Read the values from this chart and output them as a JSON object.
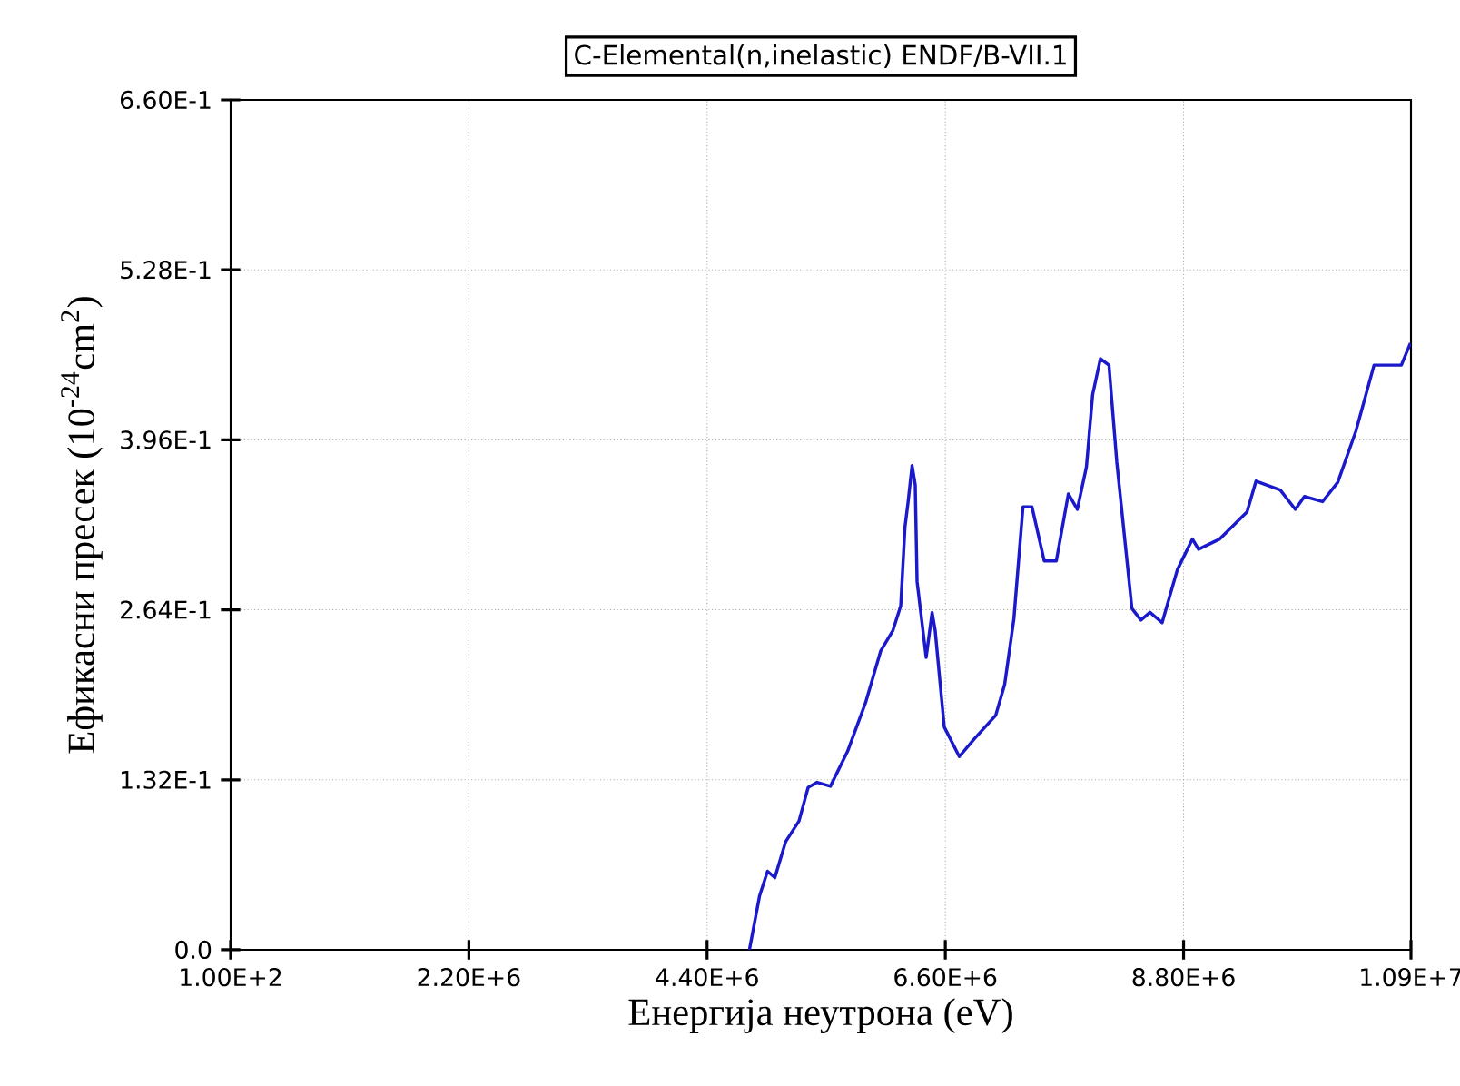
{
  "chart_data": {
    "type": "line",
    "title": "C-Elemental(n,inelastic) ENDF/B-VII.1",
    "xlabel": "Енергија неутрона (eV)",
    "ylabel": "Ефикасни пресек (10$^{-24}$cm$^{2}$)",
    "xlim": [
      100,
      10900000
    ],
    "ylim": [
      0,
      0.66
    ],
    "xticks": [
      {
        "value": 100,
        "label": "1.00E+2"
      },
      {
        "value": 2200000,
        "label": "2.20E+6"
      },
      {
        "value": 4400000,
        "label": "4.40E+6"
      },
      {
        "value": 6600000,
        "label": "6.60E+6"
      },
      {
        "value": 8800000,
        "label": "8.80E+6"
      },
      {
        "value": 10900000,
        "label": "1.09E+7"
      }
    ],
    "yticks": [
      {
        "value": 0,
        "label": "0.0"
      },
      {
        "value": 0.132,
        "label": "1.32E-1"
      },
      {
        "value": 0.264,
        "label": "2.64E-1"
      },
      {
        "value": 0.396,
        "label": "3.96E-1"
      },
      {
        "value": 0.528,
        "label": "5.28E-1"
      },
      {
        "value": 0.66,
        "label": "6.60E-1"
      }
    ],
    "grid": true,
    "marker": "none",
    "line_style": "solid",
    "series": [
      {
        "color": "#1a1acc",
        "x": [
          4791000,
          4885000,
          4958000,
          5026000,
          5126000,
          5249000,
          5333000,
          5416000,
          5539000,
          5697000,
          5864000,
          6003000,
          6116000,
          6188000,
          6227000,
          6255000,
          6293000,
          6322000,
          6339000,
          6423000,
          6478000,
          6506000,
          6590000,
          6729000,
          6870000,
          7065000,
          7148000,
          7233000,
          7317000,
          7400000,
          7513000,
          7625000,
          7736000,
          7819000,
          7903000,
          7960000,
          8032000,
          8111000,
          8183000,
          8323000,
          8406000,
          8490000,
          8602000,
          8742000,
          8882000,
          8938000,
          9134000,
          9386000,
          9469000,
          9693000,
          9832000,
          9916000,
          10083000,
          10224000,
          10392000,
          10559000,
          10811000,
          10895000
        ],
        "values": [
          0,
          0.042,
          0.061,
          0.056,
          0.084,
          0.1,
          0.126,
          0.13,
          0.127,
          0.154,
          0.192,
          0.232,
          0.248,
          0.267,
          0.328,
          0.347,
          0.376,
          0.361,
          0.286,
          0.227,
          0.262,
          0.248,
          0.173,
          0.15,
          0.164,
          0.182,
          0.206,
          0.257,
          0.344,
          0.344,
          0.302,
          0.302,
          0.354,
          0.342,
          0.375,
          0.431,
          0.459,
          0.454,
          0.379,
          0.265,
          0.256,
          0.262,
          0.254,
          0.295,
          0.319,
          0.311,
          0.319,
          0.34,
          0.364,
          0.357,
          0.342,
          0.352,
          0.348,
          0.363,
          0.403,
          0.454,
          0.454,
          0.471
        ]
      }
    ]
  }
}
